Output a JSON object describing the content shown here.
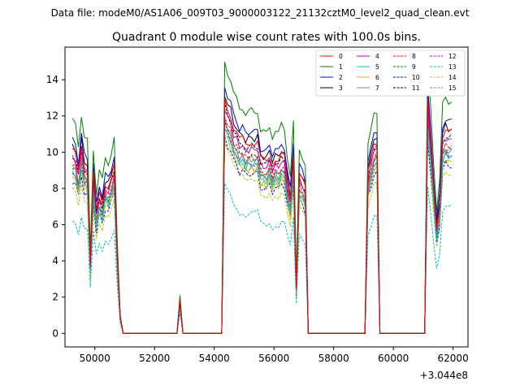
{
  "window": {
    "suptitle": "Data file: modeM0/AS1A06_009T03_9000003122_21132cztM0_level2_quad_clean.evt"
  },
  "chart_data": {
    "type": "line",
    "title": "Quadrant 0 module wise count rates with 100.0s bins.",
    "xlabel": "",
    "ylabel": "",
    "x_offset_label": "+3.044e8",
    "xlim": [
      49000,
      62500
    ],
    "ylim": [
      -0.75,
      15.8
    ],
    "x_ticks": [
      50000,
      52000,
      54000,
      56000,
      58000,
      60000,
      62000
    ],
    "x_tick_labels": [
      "50000",
      "52000",
      "54000",
      "56000",
      "58000",
      "60000",
      "62000"
    ],
    "y_ticks": [
      0,
      2,
      4,
      6,
      8,
      10,
      12,
      14
    ],
    "y_tick_labels": [
      "0",
      "2",
      "4",
      "6",
      "8",
      "10",
      "12",
      "14"
    ],
    "grid": false,
    "legend_position": "top-right",
    "legend_columns": 4,
    "x": [
      49250,
      49350,
      49450,
      49550,
      49650,
      49750,
      49850,
      49950,
      50050,
      50150,
      50250,
      50350,
      50450,
      50550,
      50650,
      50750,
      50850,
      50950,
      51050,
      51150,
      51250,
      51350,
      51450,
      51550,
      51650,
      51750,
      51850,
      51950,
      52050,
      52150,
      52250,
      52350,
      52450,
      52550,
      52650,
      52750,
      52850,
      52950,
      53050,
      53150,
      53250,
      53350,
      53450,
      53550,
      53650,
      53750,
      53850,
      53950,
      54050,
      54150,
      54250,
      54350,
      54450,
      54550,
      54650,
      54750,
      54850,
      54950,
      55050,
      55150,
      55250,
      55350,
      55450,
      55550,
      55650,
      55750,
      55850,
      55950,
      56050,
      56150,
      56250,
      56350,
      56450,
      56550,
      56650,
      56750,
      56850,
      56950,
      57050,
      57150,
      57250,
      57350,
      57450,
      57550,
      57650,
      57750,
      57850,
      57950,
      58050,
      58150,
      58250,
      58350,
      58450,
      58550,
      58650,
      58750,
      58850,
      58950,
      59050,
      59150,
      59250,
      59350,
      59450,
      59550,
      59650,
      59750,
      59850,
      59950,
      60050,
      60150,
      60250,
      60350,
      60450,
      60550,
      60650,
      60750,
      60850,
      60950,
      61050,
      61150,
      61250,
      61350,
      61450,
      61550,
      61650,
      61750,
      61850,
      61950
    ],
    "series": [
      {
        "name": "0",
        "color": "#ff0000",
        "dash": "solid",
        "scale": 0.86
      },
      {
        "name": "1",
        "color": "#008000",
        "dash": "solid",
        "scale": 1.0
      },
      {
        "name": "2",
        "color": "#0000ff",
        "dash": "solid",
        "scale": 0.91
      },
      {
        "name": "3",
        "color": "#000000",
        "dash": "solid",
        "scale": 0.88
      },
      {
        "name": "4",
        "color": "#bf00bf",
        "dash": "solid",
        "scale": 0.83
      },
      {
        "name": "5",
        "color": "#00bfbf",
        "dash": "solid",
        "scale": 0.76
      },
      {
        "name": "6",
        "color": "#bfbf00",
        "dash": "solid",
        "scale": 0.74
      },
      {
        "name": "7",
        "color": "#808080",
        "dash": "solid",
        "scale": 0.78
      },
      {
        "name": "8",
        "color": "#ff0000",
        "dash": "dashed",
        "scale": 0.8
      },
      {
        "name": "9",
        "color": "#008000",
        "dash": "dashed",
        "scale": 0.79
      },
      {
        "name": "10",
        "color": "#0000ff",
        "dash": "dashed",
        "scale": 0.72
      },
      {
        "name": "11",
        "color": "#000000",
        "dash": "dashed",
        "scale": 0.84
      },
      {
        "name": "12",
        "color": "#bf00bf",
        "dash": "dashed",
        "scale": 0.77
      },
      {
        "name": "13",
        "color": "#00bfbf",
        "dash": "dashed",
        "scale": 0.54
      },
      {
        "name": "14",
        "color": "#bfbf00",
        "dash": "dashed",
        "scale": 0.69
      },
      {
        "name": "15",
        "color": "#808080",
        "dash": "dashed",
        "scale": 0.75
      }
    ],
    "base_profile": [
      11.7,
      11.5,
      10.4,
      12.1,
      10.8,
      10.6,
      4.5,
      10.2,
      7.8,
      9.0,
      8.4,
      9.6,
      9.4,
      10.0,
      10.8,
      5.0,
      1.0,
      0.0,
      0.0,
      0.0,
      0.0,
      0.0,
      0.0,
      0.0,
      0.0,
      0.0,
      0.0,
      0.0,
      0.0,
      0.0,
      0.0,
      0.0,
      0.0,
      0.0,
      0.0,
      0.0,
      2.1,
      0.0,
      0.0,
      0.0,
      0.0,
      0.0,
      0.0,
      0.0,
      0.0,
      0.0,
      0.0,
      0.0,
      0.0,
      0.0,
      0.0,
      15.0,
      14.4,
      14.0,
      13.2,
      12.9,
      12.4,
      12.5,
      12.1,
      12.2,
      12.3,
      12.2,
      12.3,
      11.2,
      11.1,
      11.0,
      11.4,
      10.9,
      11.2,
      11.0,
      11.5,
      11.3,
      9.8,
      8.7,
      11.6,
      3.0,
      10.2,
      9.8,
      9.3,
      0.0,
      0.0,
      0.0,
      0.0,
      0.0,
      0.0,
      0.0,
      0.0,
      0.0,
      0.0,
      0.0,
      0.0,
      0.0,
      0.0,
      0.0,
      0.0,
      0.0,
      0.0,
      0.0,
      0.0,
      10.3,
      11.2,
      12.3,
      12.3,
      0.0,
      0.0,
      0.0,
      0.0,
      0.0,
      0.0,
      0.0,
      0.0,
      0.0,
      0.0,
      0.0,
      0.0,
      0.0,
      0.0,
      0.0,
      0.0,
      14.9,
      12.4,
      9.5,
      6.9,
      8.4,
      12.6,
      13.0,
      12.8,
      12.9,
      11.1,
      11.6,
      11.7,
      12.6
    ]
  }
}
